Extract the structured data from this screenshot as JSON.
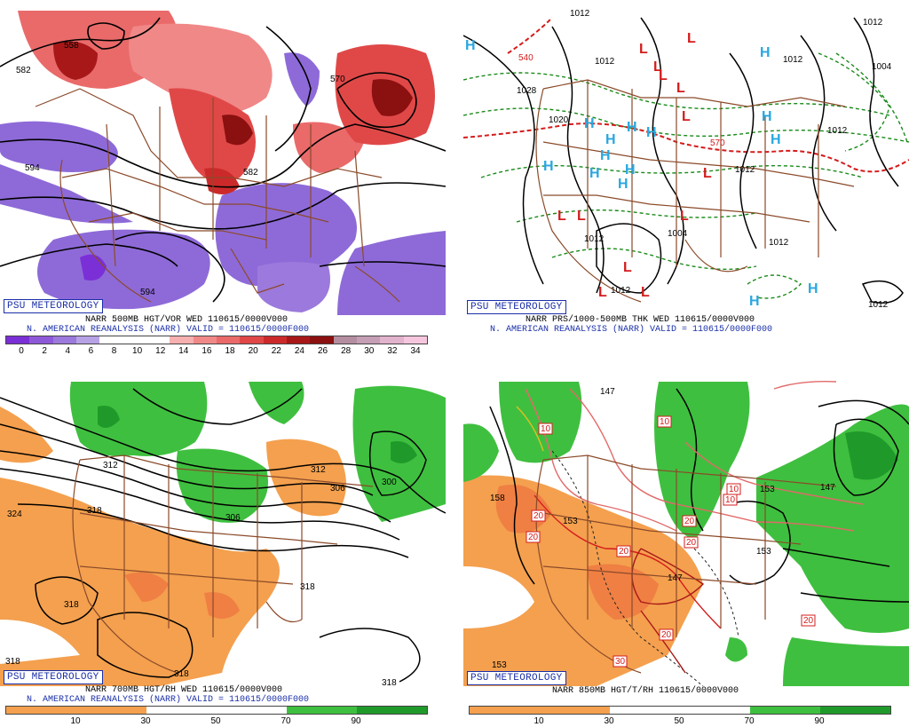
{
  "brand": "PSU METEOROLOGY",
  "colors": {
    "vor_neg": "#8a5ad6",
    "vor_pos": "#e25a5a",
    "vor_max": "#8b1010",
    "dry": "#f4a04e",
    "moist": "#3fbf3f",
    "state_lines": "#8b4a2a",
    "high_marker": "#2aa7e0",
    "low_marker": "#d41c1c",
    "thickness": "#1a8a1a"
  },
  "panels": {
    "p500": {
      "caption_line1": "NARR 500MB HGT/VOR WED 110615/0000V000",
      "caption_line2": "N. AMERICAN REANALYSIS (NARR) VALID = 110615/0000F000",
      "contour_labels": [
        "558",
        "582",
        "594",
        "570",
        "582",
        "594"
      ],
      "colorbar_ticks": [
        "0",
        "2",
        "4",
        "6",
        "8",
        "10",
        "12",
        "14",
        "16",
        "18",
        "20",
        "22",
        "24",
        "26",
        "28",
        "30",
        "32",
        "34"
      ],
      "colorbar_colors": [
        "#7b2fd6",
        "#8e59d8",
        "#9c79dc",
        "#b7a2e6",
        "#ffffff",
        "#ffffff",
        "#ffffff",
        "#f6b0b0",
        "#f08888",
        "#ea6a6a",
        "#e04848",
        "#cc2a2a",
        "#a81818",
        "#8b1010",
        "#b48ea0",
        "#c49fb5",
        "#e2b3cd",
        "#f6c6de"
      ]
    },
    "ptk": {
      "caption_line1": "NARR PRS/1000-500MB THK WED 110615/0000V000",
      "caption_line2": "N. AMERICAN REANALYSIS (NARR) VALID = 110615/0000F000",
      "contour_labels": [
        "1012",
        "1020",
        "1028",
        "1012",
        "1004",
        "1012",
        "1012",
        "1012",
        "1012",
        "1004",
        "1012",
        "1012",
        "1012",
        "1012",
        "540",
        "570"
      ],
      "highs": [
        "H",
        "H",
        "H",
        "H",
        "H",
        "H",
        "H",
        "H",
        "H",
        "H",
        "H",
        "H",
        "H",
        "H",
        "H"
      ],
      "lows": [
        "L",
        "L",
        "L",
        "L",
        "L",
        "L",
        "L",
        "L",
        "L",
        "L",
        "L",
        "L",
        "L"
      ]
    },
    "p700": {
      "caption_line1": "NARR 700MB HGT/RH WED 110615/0000V000",
      "caption_line2": "N. AMERICAN REANALYSIS (NARR) VALID = 110615/0000F000",
      "contour_labels": [
        "312",
        "324",
        "318",
        "318",
        "306",
        "300",
        "312",
        "306",
        "318",
        "318",
        "318",
        "318"
      ],
      "colorbar_ticks": [
        "10",
        "30",
        "50",
        "70",
        "90"
      ]
    },
    "p850": {
      "caption_line1": "NARR 850MB HGT/T/RH 110615/0000V000",
      "contour_labels": [
        "147",
        "158",
        "153",
        "147",
        "153",
        "153",
        "147",
        "153"
      ],
      "temp_labels": [
        "10",
        "10",
        "10",
        "20",
        "20",
        "20",
        "20",
        "20",
        "20",
        "30",
        "20",
        "10"
      ],
      "colorbar_ticks": [
        "10",
        "30",
        "50",
        "70",
        "90"
      ]
    }
  }
}
